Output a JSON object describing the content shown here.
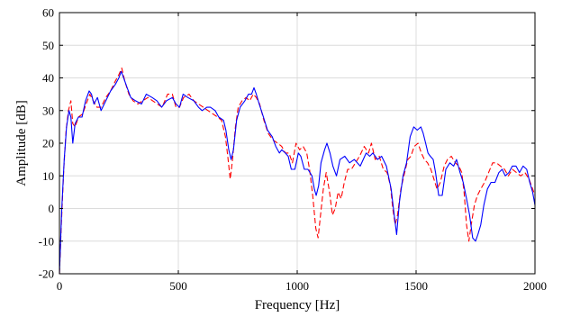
{
  "chart_data": {
    "type": "line",
    "title": "",
    "xlabel": "Frequency [Hz]",
    "ylabel": "Amplitude [dB]",
    "xlim": [
      0,
      2000
    ],
    "ylim": [
      -20,
      60
    ],
    "xticks": [
      0,
      500,
      1000,
      1500,
      2000
    ],
    "yticks": [
      -20,
      -10,
      0,
      10,
      20,
      30,
      40,
      50,
      60
    ],
    "xtick_labels": [
      "0",
      "500",
      "1000",
      "1500",
      "2000"
    ],
    "ytick_labels": [
      "-20",
      "-10",
      "0",
      "10",
      "20",
      "30",
      "40",
      "50",
      "60"
    ],
    "grid": true,
    "legend": "none",
    "series": [
      {
        "color": "#0000ff",
        "style": "solid",
        "points": [
          [
            0,
            -20
          ],
          [
            10,
            0
          ],
          [
            20,
            15
          ],
          [
            30,
            25
          ],
          [
            40,
            30
          ],
          [
            48,
            28
          ],
          [
            56,
            20
          ],
          [
            66,
            26
          ],
          [
            80,
            28
          ],
          [
            95,
            28
          ],
          [
            110,
            33
          ],
          [
            125,
            36
          ],
          [
            135,
            35
          ],
          [
            145,
            32
          ],
          [
            160,
            34
          ],
          [
            175,
            30
          ],
          [
            195,
            33
          ],
          [
            215,
            36
          ],
          [
            235,
            38
          ],
          [
            250,
            40
          ],
          [
            260,
            42
          ],
          [
            270,
            40
          ],
          [
            285,
            37
          ],
          [
            300,
            34
          ],
          [
            320,
            33
          ],
          [
            345,
            32
          ],
          [
            365,
            35
          ],
          [
            390,
            34
          ],
          [
            410,
            33
          ],
          [
            430,
            31
          ],
          [
            450,
            33
          ],
          [
            475,
            34
          ],
          [
            490,
            32
          ],
          [
            505,
            31
          ],
          [
            520,
            35
          ],
          [
            540,
            34
          ],
          [
            565,
            33
          ],
          [
            585,
            31
          ],
          [
            600,
            30
          ],
          [
            620,
            31
          ],
          [
            635,
            31
          ],
          [
            655,
            30
          ],
          [
            670,
            28
          ],
          [
            690,
            27
          ],
          [
            700,
            24
          ],
          [
            712,
            18
          ],
          [
            722,
            15
          ],
          [
            732,
            18
          ],
          [
            745,
            27
          ],
          [
            760,
            31
          ],
          [
            780,
            33
          ],
          [
            795,
            35
          ],
          [
            808,
            35
          ],
          [
            818,
            37
          ],
          [
            828,
            35
          ],
          [
            840,
            32
          ],
          [
            858,
            28
          ],
          [
            875,
            24
          ],
          [
            895,
            22
          ],
          [
            910,
            19
          ],
          [
            925,
            17
          ],
          [
            935,
            18
          ],
          [
            950,
            17
          ],
          [
            962,
            16
          ],
          [
            975,
            12
          ],
          [
            990,
            12
          ],
          [
            1005,
            17
          ],
          [
            1015,
            16
          ],
          [
            1030,
            12
          ],
          [
            1045,
            12
          ],
          [
            1062,
            10
          ],
          [
            1072,
            6
          ],
          [
            1080,
            4
          ],
          [
            1090,
            7
          ],
          [
            1100,
            14
          ],
          [
            1115,
            18
          ],
          [
            1125,
            20
          ],
          [
            1138,
            17
          ],
          [
            1150,
            13
          ],
          [
            1165,
            10
          ],
          [
            1180,
            15
          ],
          [
            1200,
            16
          ],
          [
            1220,
            14
          ],
          [
            1240,
            15
          ],
          [
            1265,
            13
          ],
          [
            1290,
            17
          ],
          [
            1305,
            16
          ],
          [
            1318,
            17
          ],
          [
            1338,
            15
          ],
          [
            1355,
            16
          ],
          [
            1375,
            13
          ],
          [
            1395,
            6
          ],
          [
            1408,
            -2
          ],
          [
            1418,
            -8
          ],
          [
            1430,
            2
          ],
          [
            1445,
            10
          ],
          [
            1460,
            14
          ],
          [
            1475,
            22
          ],
          [
            1490,
            25
          ],
          [
            1505,
            24
          ],
          [
            1520,
            25
          ],
          [
            1530,
            23
          ],
          [
            1540,
            20
          ],
          [
            1550,
            17
          ],
          [
            1560,
            16
          ],
          [
            1572,
            15
          ],
          [
            1582,
            11
          ],
          [
            1595,
            4
          ],
          [
            1610,
            4
          ],
          [
            1625,
            12
          ],
          [
            1642,
            14
          ],
          [
            1658,
            13
          ],
          [
            1670,
            15
          ],
          [
            1685,
            11
          ],
          [
            1698,
            8
          ],
          [
            1712,
            3
          ],
          [
            1725,
            -2
          ],
          [
            1738,
            -9
          ],
          [
            1750,
            -10
          ],
          [
            1760,
            -8
          ],
          [
            1772,
            -5
          ],
          [
            1785,
            1
          ],
          [
            1800,
            6
          ],
          [
            1815,
            8
          ],
          [
            1832,
            8
          ],
          [
            1848,
            11
          ],
          [
            1862,
            12
          ],
          [
            1875,
            10
          ],
          [
            1890,
            11
          ],
          [
            1905,
            13
          ],
          [
            1920,
            13
          ],
          [
            1935,
            11
          ],
          [
            1950,
            13
          ],
          [
            1965,
            12
          ],
          [
            1978,
            8
          ],
          [
            1990,
            5
          ],
          [
            2000,
            1
          ]
        ]
      },
      {
        "color": "#ff0000",
        "style": "dashed",
        "points": [
          [
            0,
            -20
          ],
          [
            8,
            -5
          ],
          [
            18,
            12
          ],
          [
            28,
            24
          ],
          [
            38,
            30
          ],
          [
            48,
            33
          ],
          [
            56,
            26
          ],
          [
            66,
            25
          ],
          [
            80,
            28
          ],
          [
            98,
            29
          ],
          [
            112,
            32
          ],
          [
            128,
            35
          ],
          [
            142,
            33
          ],
          [
            158,
            31
          ],
          [
            175,
            31
          ],
          [
            195,
            34
          ],
          [
            215,
            36
          ],
          [
            235,
            39
          ],
          [
            250,
            41
          ],
          [
            262,
            43
          ],
          [
            275,
            39
          ],
          [
            292,
            35
          ],
          [
            310,
            33
          ],
          [
            330,
            32
          ],
          [
            350,
            33
          ],
          [
            372,
            34
          ],
          [
            392,
            33
          ],
          [
            412,
            32
          ],
          [
            432,
            31
          ],
          [
            455,
            35
          ],
          [
            475,
            35
          ],
          [
            490,
            31
          ],
          [
            505,
            31
          ],
          [
            522,
            34
          ],
          [
            545,
            35
          ],
          [
            565,
            33
          ],
          [
            585,
            32
          ],
          [
            605,
            31
          ],
          [
            625,
            30
          ],
          [
            645,
            29
          ],
          [
            665,
            28
          ],
          [
            682,
            27
          ],
          [
            698,
            22
          ],
          [
            708,
            16
          ],
          [
            718,
            9
          ],
          [
            728,
            15
          ],
          [
            740,
            25
          ],
          [
            752,
            31
          ],
          [
            768,
            33
          ],
          [
            785,
            34
          ],
          [
            800,
            33
          ],
          [
            815,
            35
          ],
          [
            828,
            34
          ],
          [
            842,
            32
          ],
          [
            860,
            27
          ],
          [
            878,
            23
          ],
          [
            898,
            21
          ],
          [
            918,
            20
          ],
          [
            935,
            19
          ],
          [
            950,
            17
          ],
          [
            965,
            17
          ],
          [
            980,
            14
          ],
          [
            995,
            20
          ],
          [
            1010,
            18
          ],
          [
            1025,
            19
          ],
          [
            1040,
            17
          ],
          [
            1052,
            12
          ],
          [
            1065,
            4
          ],
          [
            1078,
            -6
          ],
          [
            1088,
            -9
          ],
          [
            1098,
            -2
          ],
          [
            1110,
            6
          ],
          [
            1122,
            11
          ],
          [
            1136,
            5
          ],
          [
            1148,
            -2
          ],
          [
            1160,
            0
          ],
          [
            1172,
            5
          ],
          [
            1185,
            3
          ],
          [
            1198,
            8
          ],
          [
            1212,
            12
          ],
          [
            1228,
            12
          ],
          [
            1245,
            14
          ],
          [
            1262,
            16
          ],
          [
            1282,
            19
          ],
          [
            1300,
            17
          ],
          [
            1312,
            20
          ],
          [
            1328,
            15
          ],
          [
            1345,
            16
          ],
          [
            1362,
            12
          ],
          [
            1378,
            11
          ],
          [
            1392,
            7
          ],
          [
            1402,
            0
          ],
          [
            1412,
            -5
          ],
          [
            1422,
            -2
          ],
          [
            1436,
            6
          ],
          [
            1452,
            11
          ],
          [
            1465,
            15
          ],
          [
            1478,
            16
          ],
          [
            1492,
            19
          ],
          [
            1508,
            20
          ],
          [
            1522,
            17
          ],
          [
            1535,
            15
          ],
          [
            1548,
            14
          ],
          [
            1562,
            12
          ],
          [
            1575,
            9
          ],
          [
            1588,
            6
          ],
          [
            1602,
            8
          ],
          [
            1618,
            13
          ],
          [
            1632,
            15
          ],
          [
            1648,
            16
          ],
          [
            1665,
            14
          ],
          [
            1680,
            13
          ],
          [
            1692,
            11
          ],
          [
            1702,
            5
          ],
          [
            1712,
            -5
          ],
          [
            1722,
            -10
          ],
          [
            1732,
            -5
          ],
          [
            1745,
            1
          ],
          [
            1758,
            4
          ],
          [
            1772,
            6
          ],
          [
            1788,
            8
          ],
          [
            1805,
            11
          ],
          [
            1822,
            14
          ],
          [
            1838,
            14
          ],
          [
            1855,
            13
          ],
          [
            1872,
            12
          ],
          [
            1888,
            10
          ],
          [
            1905,
            12
          ],
          [
            1922,
            11
          ],
          [
            1940,
            10
          ],
          [
            1958,
            11
          ],
          [
            1975,
            9
          ],
          [
            1990,
            6
          ],
          [
            2000,
            4
          ]
        ]
      }
    ]
  }
}
